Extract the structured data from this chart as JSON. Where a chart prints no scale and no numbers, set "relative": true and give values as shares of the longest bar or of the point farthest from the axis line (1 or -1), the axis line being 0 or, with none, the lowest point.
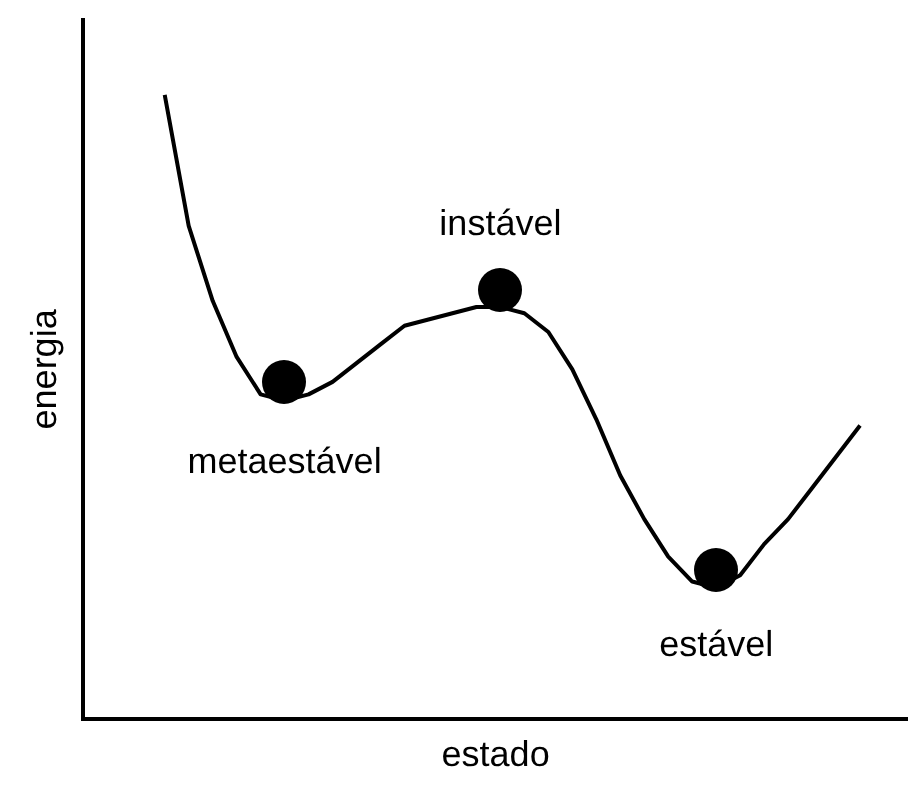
{
  "chart_data": {
    "type": "line",
    "relative": true,
    "xlabel": "estado",
    "ylabel": "energia",
    "categories": [
      null,
      null,
      null,
      null,
      null,
      null,
      null,
      null,
      null,
      null,
      null,
      null,
      null,
      null,
      null,
      null,
      null,
      null,
      null,
      null,
      null,
      null,
      null,
      null,
      null,
      null,
      null,
      null,
      null,
      null
    ],
    "series": [
      {
        "color": "#000000",
        "values": [
          1.0,
          0.79,
          0.67,
          0.58,
          0.52,
          0.51,
          0.52,
          0.54,
          0.57,
          0.6,
          0.63,
          0.64,
          0.65,
          0.66,
          0.66,
          0.65,
          0.62,
          0.56,
          0.48,
          0.39,
          0.32,
          0.26,
          0.22,
          0.21,
          0.23,
          0.28,
          0.32,
          0.37,
          0.42,
          0.47
        ]
      }
    ],
    "annotations": [
      "metaestável",
      "instável",
      "estável"
    ],
    "grid": false,
    "legend": false
  }
}
